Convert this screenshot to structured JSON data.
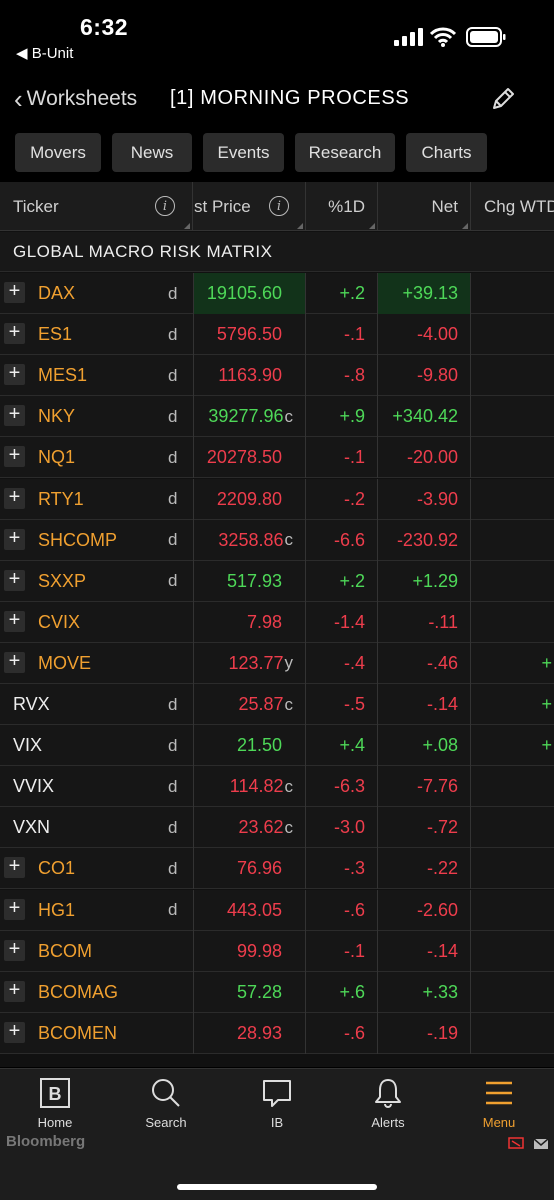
{
  "status_bar": {
    "time": "6:32",
    "back_app": "◀ B-Unit"
  },
  "nav": {
    "back_label": "Worksheets",
    "title": "[1] MORNING PROCESS"
  },
  "tabs": [
    "Movers",
    "News",
    "Events",
    "Research",
    "Charts"
  ],
  "columns": {
    "ticker": "Ticker",
    "price": "st Price",
    "pct": "%1D",
    "net": "Net",
    "wtd": "Chg WTD"
  },
  "section_title": "GLOBAL MACRO RISK MATRIX",
  "rows": [
    {
      "ticker": "DAX",
      "plus": true,
      "d": "d",
      "price": "19105.60",
      "sfx": "",
      "pct": "+.2",
      "net": "+39.13",
      "dir": "up",
      "hl": true,
      "wtd": ""
    },
    {
      "ticker": "ES1",
      "plus": true,
      "d": "d",
      "price": "5796.50",
      "sfx": "",
      "pct": "-.1",
      "net": "-4.00",
      "dir": "dn",
      "hl": false,
      "wtd": ""
    },
    {
      "ticker": "MES1",
      "plus": true,
      "d": "d",
      "price": "1163.90",
      "sfx": "",
      "pct": "-.8",
      "net": "-9.80",
      "dir": "dn",
      "hl": false,
      "wtd": ""
    },
    {
      "ticker": "NKY",
      "plus": true,
      "d": "d",
      "price": "39277.96",
      "sfx": "c",
      "pct": "+.9",
      "net": "+340.42",
      "dir": "up",
      "hl": false,
      "wtd": ""
    },
    {
      "ticker": "NQ1",
      "plus": true,
      "d": "d",
      "price": "20278.50",
      "sfx": "",
      "pct": "-.1",
      "net": "-20.00",
      "dir": "dn",
      "hl": false,
      "wtd": ""
    },
    {
      "ticker": "RTY1",
      "plus": true,
      "d": "d",
      "price": "2209.80",
      "sfx": "",
      "pct": "-.2",
      "net": "-3.90",
      "dir": "dn",
      "hl": false,
      "wtd": ""
    },
    {
      "ticker": "SHCOMP",
      "plus": true,
      "d": "d",
      "price": "3258.86",
      "sfx": "c",
      "pct": "-6.6",
      "net": "-230.92",
      "dir": "dn",
      "hl": false,
      "wtd": ""
    },
    {
      "ticker": "SXXP",
      "plus": true,
      "d": "d",
      "price": "517.93",
      "sfx": "",
      "pct": "+.2",
      "net": "+1.29",
      "dir": "up",
      "hl": false,
      "wtd": ""
    },
    {
      "ticker": "CVIX",
      "plus": true,
      "d": "",
      "price": "7.98",
      "sfx": "",
      "pct": "-1.4",
      "net": "-.11",
      "dir": "dn",
      "hl": false,
      "wtd": ""
    },
    {
      "ticker": "MOVE",
      "plus": true,
      "d": "",
      "price": "123.77",
      "sfx": "y",
      "pct": "-.4",
      "net": "-.46",
      "dir": "dn",
      "hl": false,
      "wtd": "+"
    },
    {
      "ticker": "RVX",
      "plus": false,
      "d": "d",
      "price": "25.87",
      "sfx": "c",
      "pct": "-.5",
      "net": "-.14",
      "dir": "dn",
      "hl": false,
      "wtd": "+"
    },
    {
      "ticker": "VIX",
      "plus": false,
      "d": "d",
      "price": "21.50",
      "sfx": "",
      "pct": "+.4",
      "net": "+.08",
      "dir": "up",
      "hl": false,
      "wtd": "+"
    },
    {
      "ticker": "VVIX",
      "plus": false,
      "d": "d",
      "price": "114.82",
      "sfx": "c",
      "pct": "-6.3",
      "net": "-7.76",
      "dir": "dn",
      "hl": false,
      "wtd": ""
    },
    {
      "ticker": "VXN",
      "plus": false,
      "d": "d",
      "price": "23.62",
      "sfx": "c",
      "pct": "-3.0",
      "net": "-.72",
      "dir": "dn",
      "hl": false,
      "wtd": ""
    },
    {
      "ticker": "CO1",
      "plus": true,
      "d": "d",
      "price": "76.96",
      "sfx": "",
      "pct": "-.3",
      "net": "-.22",
      "dir": "dn",
      "hl": false,
      "wtd": ""
    },
    {
      "ticker": "HG1",
      "plus": true,
      "d": "d",
      "price": "443.05",
      "sfx": "",
      "pct": "-.6",
      "net": "-2.60",
      "dir": "dn",
      "hl": false,
      "wtd": ""
    },
    {
      "ticker": "BCOM",
      "plus": true,
      "d": "",
      "price": "99.98",
      "sfx": "",
      "pct": "-.1",
      "net": "-.14",
      "dir": "dn",
      "hl": false,
      "wtd": ""
    },
    {
      "ticker": "BCOMAG",
      "plus": true,
      "d": "",
      "price": "57.28",
      "sfx": "",
      "pct": "+.6",
      "net": "+.33",
      "dir": "up",
      "hl": false,
      "wtd": ""
    },
    {
      "ticker": "BCOMEN",
      "plus": true,
      "d": "",
      "price": "28.93",
      "sfx": "",
      "pct": "-.6",
      "net": "-.19",
      "dir": "dn",
      "hl": false,
      "wtd": ""
    }
  ],
  "tabbar": {
    "items": [
      {
        "label": "Home",
        "icon": "bloomberg-b-icon"
      },
      {
        "label": "Search",
        "icon": "search-icon"
      },
      {
        "label": "IB",
        "icon": "chat-icon"
      },
      {
        "label": "Alerts",
        "icon": "bell-icon"
      },
      {
        "label": "Menu",
        "icon": "hamburger-icon"
      }
    ],
    "brand": "Bloomberg",
    "active": "Menu"
  },
  "colors": {
    "ticker": "#f0a030",
    "up": "#4ed858",
    "down": "#ee3d4c",
    "accent": "#f0a030"
  }
}
